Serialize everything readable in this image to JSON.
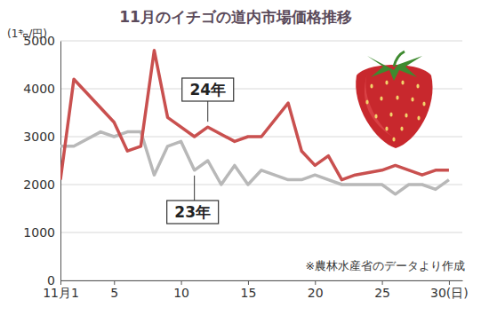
{
  "chart_data": {
    "type": "line",
    "title": "11月のイチゴの道内市場価格推移",
    "y_label": "(1㌔/円)",
    "note": "※農林水産省のデータより作成",
    "xlim": [
      1,
      31
    ],
    "xticks": [
      {
        "value": 1,
        "label": "11月1"
      },
      5,
      10,
      15,
      20,
      25,
      {
        "value": 30,
        "label": "30(日)"
      }
    ],
    "ylim": [
      0,
      5000
    ],
    "yticks": [
      0,
      1000,
      2000,
      3000,
      4000,
      5000
    ],
    "grid": true,
    "series": [
      {
        "name": "24年",
        "color": "#c9504f",
        "x": [
          1,
          2,
          5,
          6,
          7,
          8,
          9,
          11,
          12,
          14,
          15,
          16,
          18,
          19,
          20,
          21,
          22,
          23,
          25,
          26,
          28,
          29,
          30
        ],
        "values": [
          2100,
          4200,
          3300,
          2700,
          2800,
          4800,
          3400,
          3000,
          3200,
          2900,
          3000,
          3000,
          3700,
          2700,
          2400,
          2600,
          2100,
          2200,
          2300,
          2400,
          2200,
          2300,
          2300
        ]
      },
      {
        "name": "23年",
        "color": "#b8b8b8",
        "x": [
          1,
          2,
          4,
          5,
          6,
          7,
          8,
          9,
          10,
          11,
          12,
          13,
          14,
          15,
          16,
          18,
          19,
          20,
          22,
          23,
          25,
          26,
          27,
          28,
          29,
          30
        ],
        "values": [
          2800,
          2800,
          3100,
          3000,
          3100,
          3100,
          2200,
          2800,
          2900,
          2300,
          2500,
          2000,
          2400,
          2000,
          2300,
          2100,
          2100,
          2200,
          2000,
          2000,
          2000,
          1800,
          2000,
          2000,
          1900,
          2100
        ]
      }
    ]
  }
}
